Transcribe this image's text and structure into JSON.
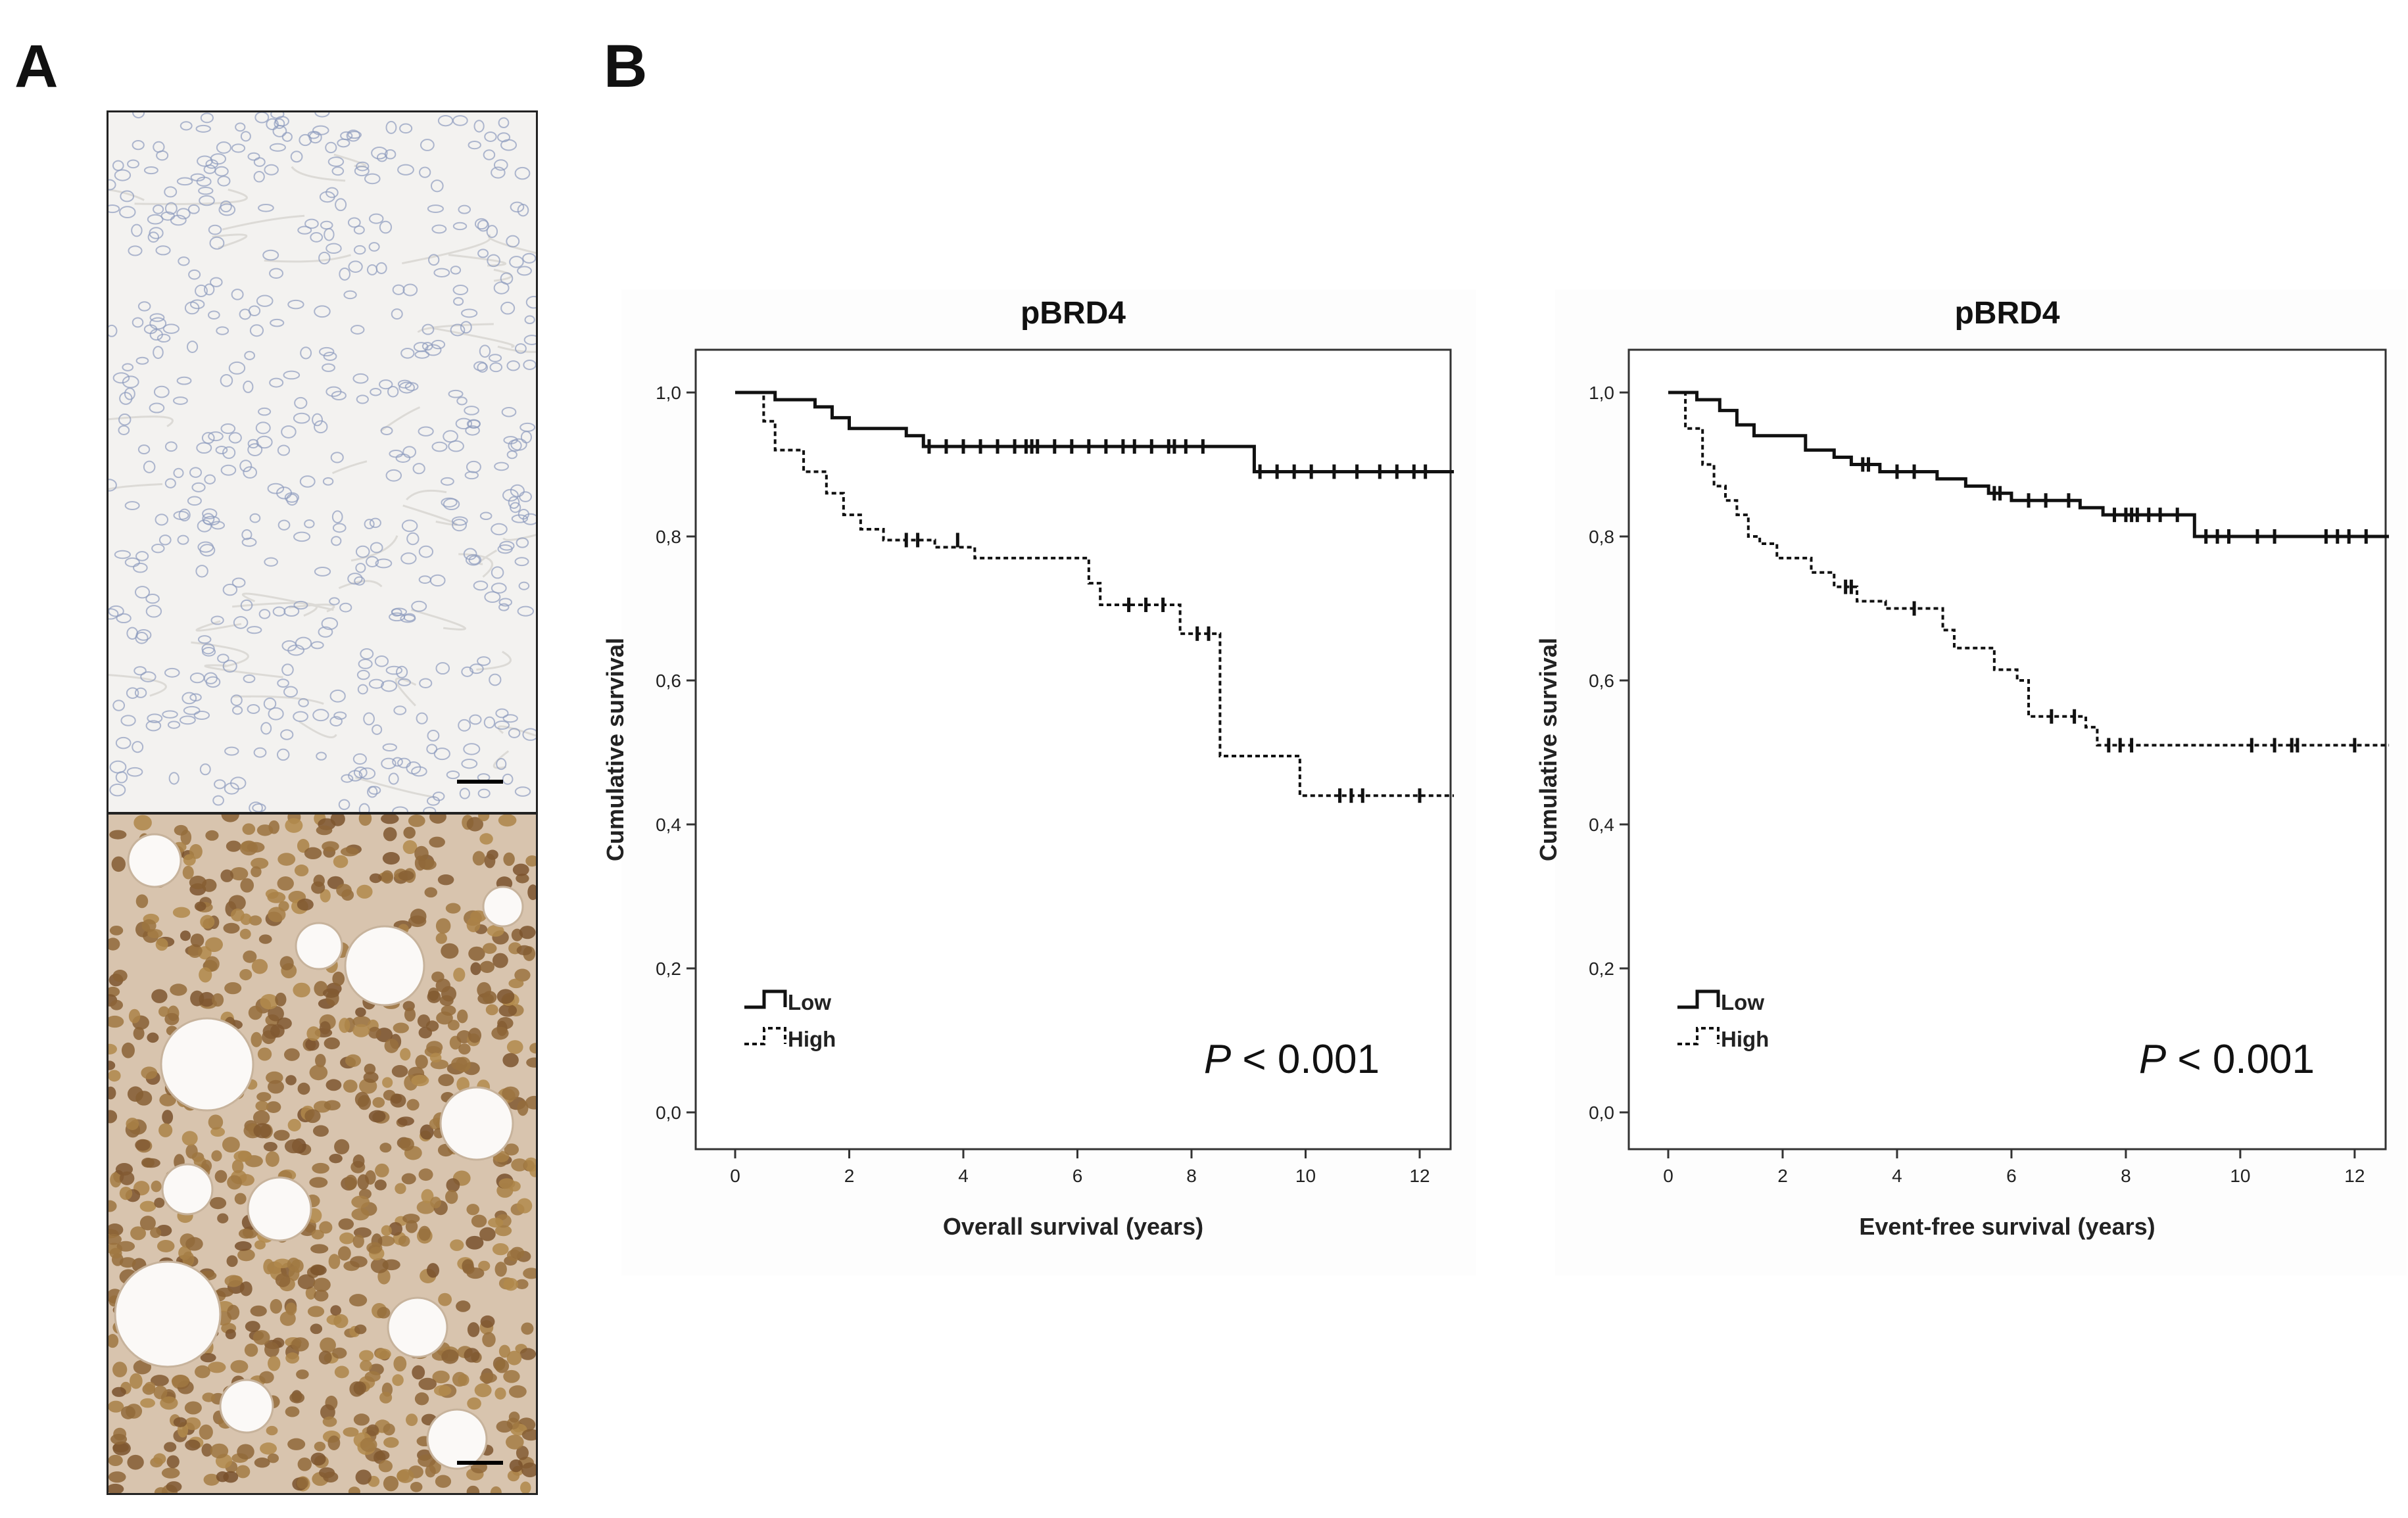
{
  "panels": {
    "a": "A",
    "b": "B"
  },
  "colors": {
    "low_tissue": "#f3f2f0",
    "high_tissue": "#d8c4ae",
    "nucleus_brown": "#7a4a22",
    "nucleus_blue": "#8d9bbd"
  },
  "chart_data": [
    {
      "type": "line",
      "title": "pBRD4",
      "xlabel": "Overall survival (years)",
      "ylabel": "Cumulative survival",
      "xlim": [
        0,
        12.6
      ],
      "ylim": [
        0,
        1.0
      ],
      "xticks": [
        0,
        2,
        4,
        6,
        8,
        10,
        12
      ],
      "xtick_labels": [
        "0",
        "2",
        "4",
        "6",
        "8",
        "10",
        "12"
      ],
      "yticks": [
        0,
        0.2,
        0.4,
        0.6,
        0.8,
        1.0
      ],
      "ytick_labels": [
        "0,0",
        "0,2",
        "0,4",
        "0,6",
        "0,8",
        "1,0"
      ],
      "annotation": {
        "italic": "P",
        "rest": " < 0.001"
      },
      "legend_position": "bottom-left",
      "series": [
        {
          "name": "Low",
          "style": "solid",
          "steps": [
            [
              0,
              1.0
            ],
            [
              0.7,
              0.99
            ],
            [
              1.4,
              0.98
            ],
            [
              1.7,
              0.965
            ],
            [
              2.0,
              0.95
            ],
            [
              3.0,
              0.94
            ],
            [
              3.3,
              0.925
            ],
            [
              9.1,
              0.89
            ]
          ],
          "censored": [
            [
              3.4,
              0.925
            ],
            [
              3.7,
              0.925
            ],
            [
              4.0,
              0.925
            ],
            [
              4.3,
              0.925
            ],
            [
              4.6,
              0.925
            ],
            [
              4.9,
              0.925
            ],
            [
              5.1,
              0.925
            ],
            [
              5.2,
              0.925
            ],
            [
              5.3,
              0.925
            ],
            [
              5.6,
              0.925
            ],
            [
              5.9,
              0.925
            ],
            [
              6.2,
              0.925
            ],
            [
              6.5,
              0.925
            ],
            [
              6.8,
              0.925
            ],
            [
              7.0,
              0.925
            ],
            [
              7.3,
              0.925
            ],
            [
              7.6,
              0.925
            ],
            [
              7.7,
              0.925
            ],
            [
              7.9,
              0.925
            ],
            [
              8.2,
              0.925
            ],
            [
              9.2,
              0.89
            ],
            [
              9.5,
              0.89
            ],
            [
              9.8,
              0.89
            ],
            [
              10.1,
              0.89
            ],
            [
              10.5,
              0.89
            ],
            [
              10.9,
              0.89
            ],
            [
              11.3,
              0.89
            ],
            [
              11.6,
              0.89
            ],
            [
              11.9,
              0.89
            ],
            [
              12.1,
              0.89
            ]
          ],
          "end_x": 12.6
        },
        {
          "name": "High",
          "style": "dotted",
          "steps": [
            [
              0,
              1.0
            ],
            [
              0.5,
              0.96
            ],
            [
              0.7,
              0.92
            ],
            [
              1.2,
              0.89
            ],
            [
              1.6,
              0.86
            ],
            [
              1.9,
              0.83
            ],
            [
              2.2,
              0.81
            ],
            [
              2.6,
              0.795
            ],
            [
              3.5,
              0.785
            ],
            [
              4.2,
              0.77
            ],
            [
              6.2,
              0.735
            ],
            [
              6.4,
              0.705
            ],
            [
              7.8,
              0.665
            ],
            [
              8.5,
              0.495
            ],
            [
              9.9,
              0.44
            ]
          ],
          "censored": [
            [
              3.0,
              0.795
            ],
            [
              3.2,
              0.795
            ],
            [
              3.9,
              0.795
            ],
            [
              6.9,
              0.705
            ],
            [
              7.2,
              0.705
            ],
            [
              7.5,
              0.705
            ],
            [
              8.1,
              0.665
            ],
            [
              8.3,
              0.665
            ],
            [
              10.6,
              0.44
            ],
            [
              10.8,
              0.44
            ],
            [
              11.0,
              0.44
            ],
            [
              12.0,
              0.44
            ]
          ],
          "end_x": 12.6
        }
      ]
    },
    {
      "type": "line",
      "title": "pBRD4",
      "xlabel": "Event-free survival (years)",
      "ylabel": "Cumulative survival",
      "xlim": [
        0,
        12.6
      ],
      "ylim": [
        0,
        1.0
      ],
      "xticks": [
        0,
        2,
        4,
        6,
        8,
        10,
        12
      ],
      "xtick_labels": [
        "0",
        "2",
        "4",
        "6",
        "8",
        "10",
        "12"
      ],
      "yticks": [
        0,
        0.2,
        0.4,
        0.6,
        0.8,
        1.0
      ],
      "ytick_labels": [
        "0,0",
        "0,2",
        "0,4",
        "0,6",
        "0,8",
        "1,0"
      ],
      "annotation": {
        "italic": "P",
        "rest": " < 0.001"
      },
      "legend_position": "bottom-left",
      "series": [
        {
          "name": "Low",
          "style": "solid",
          "steps": [
            [
              0,
              1.0
            ],
            [
              0.5,
              0.99
            ],
            [
              0.9,
              0.975
            ],
            [
              1.2,
              0.955
            ],
            [
              1.5,
              0.94
            ],
            [
              2.4,
              0.92
            ],
            [
              2.9,
              0.91
            ],
            [
              3.2,
              0.9
            ],
            [
              3.7,
              0.89
            ],
            [
              4.7,
              0.88
            ],
            [
              5.2,
              0.87
            ],
            [
              5.6,
              0.86
            ],
            [
              6.0,
              0.85
            ],
            [
              7.2,
              0.84
            ],
            [
              7.6,
              0.83
            ],
            [
              9.2,
              0.8
            ]
          ],
          "censored": [
            [
              3.4,
              0.9
            ],
            [
              3.5,
              0.9
            ],
            [
              4.0,
              0.89
            ],
            [
              4.3,
              0.89
            ],
            [
              5.7,
              0.86
            ],
            [
              5.8,
              0.86
            ],
            [
              6.3,
              0.85
            ],
            [
              6.6,
              0.85
            ],
            [
              7.0,
              0.85
            ],
            [
              7.8,
              0.83
            ],
            [
              8.0,
              0.83
            ],
            [
              8.1,
              0.83
            ],
            [
              8.2,
              0.83
            ],
            [
              8.4,
              0.83
            ],
            [
              8.6,
              0.83
            ],
            [
              8.9,
              0.83
            ],
            [
              9.4,
              0.8
            ],
            [
              9.6,
              0.8
            ],
            [
              9.8,
              0.8
            ],
            [
              10.3,
              0.8
            ],
            [
              10.6,
              0.8
            ],
            [
              11.5,
              0.8
            ],
            [
              11.7,
              0.8
            ],
            [
              11.9,
              0.8
            ],
            [
              12.2,
              0.8
            ]
          ],
          "end_x": 12.6
        },
        {
          "name": "High",
          "style": "dotted",
          "steps": [
            [
              0,
              1.0
            ],
            [
              0.3,
              0.95
            ],
            [
              0.6,
              0.9
            ],
            [
              0.8,
              0.87
            ],
            [
              1.0,
              0.85
            ],
            [
              1.2,
              0.83
            ],
            [
              1.4,
              0.8
            ],
            [
              1.6,
              0.79
            ],
            [
              1.9,
              0.77
            ],
            [
              2.5,
              0.75
            ],
            [
              2.9,
              0.73
            ],
            [
              3.3,
              0.71
            ],
            [
              3.8,
              0.7
            ],
            [
              4.8,
              0.67
            ],
            [
              5.0,
              0.645
            ],
            [
              5.7,
              0.615
            ],
            [
              6.1,
              0.6
            ],
            [
              6.3,
              0.55
            ],
            [
              7.3,
              0.535
            ],
            [
              7.5,
              0.51
            ]
          ],
          "censored": [
            [
              3.1,
              0.73
            ],
            [
              3.2,
              0.73
            ],
            [
              4.3,
              0.7
            ],
            [
              6.7,
              0.55
            ],
            [
              7.1,
              0.55
            ],
            [
              7.7,
              0.51
            ],
            [
              7.9,
              0.51
            ],
            [
              8.1,
              0.51
            ],
            [
              10.2,
              0.51
            ],
            [
              10.6,
              0.51
            ],
            [
              10.9,
              0.51
            ],
            [
              11.0,
              0.51
            ],
            [
              12.0,
              0.51
            ]
          ],
          "end_x": 12.6
        }
      ]
    }
  ]
}
